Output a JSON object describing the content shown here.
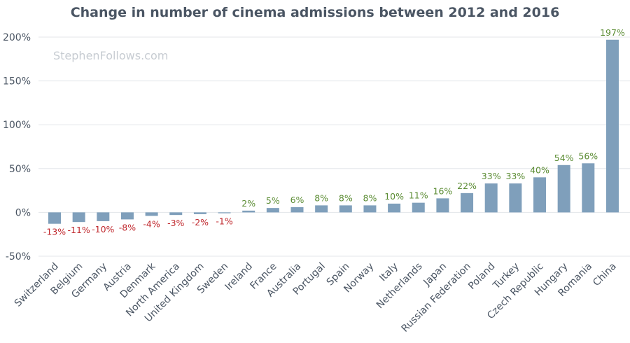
{
  "watermark": "StephenFollows.com",
  "colors": {
    "bar": "#7f9fbb",
    "positive_label": "#5b8c33",
    "negative_label": "#c0282d",
    "grid": "#e3e6ea",
    "text": "#4a5563"
  },
  "chart_data": {
    "type": "bar",
    "title": "Change in number of cinema admissions between 2012 and 2016",
    "xlabel": "",
    "ylabel": "",
    "ylim": [
      -50,
      200
    ],
    "y_ticks": [
      "-50%",
      "0%",
      "50%",
      "100%",
      "150%",
      "200%"
    ],
    "y_tick_values": [
      -50,
      0,
      50,
      100,
      150,
      200
    ],
    "grid": true,
    "categories": [
      "Switzerland",
      "Belgium",
      "Germany",
      "Austria",
      "Denmark",
      "North America",
      "United Kingdom",
      "Sweden",
      "Ireland",
      "France",
      "Australia",
      "Portugal",
      "Spain",
      "Norway",
      "Italy",
      "Netherlands",
      "Japan",
      "Russian Federation",
      "Poland",
      "Turkey",
      "Czech Republic",
      "Hungary",
      "Romania",
      "China"
    ],
    "values": [
      -13,
      -11,
      -10,
      -8,
      -4,
      -3,
      -2,
      -1,
      2,
      5,
      6,
      8,
      8,
      8,
      10,
      11,
      16,
      22,
      33,
      33,
      40,
      54,
      56,
      197
    ],
    "data_labels": [
      "-13%",
      "-11%",
      "-10%",
      "-8%",
      "-4%",
      "-3%",
      "-2%",
      "-1%",
      "2%",
      "5%",
      "6%",
      "8%",
      "8%",
      "8%",
      "10%",
      "11%",
      "16%",
      "22%",
      "33%",
      "33%",
      "40%",
      "54%",
      "56%",
      "197%"
    ]
  }
}
